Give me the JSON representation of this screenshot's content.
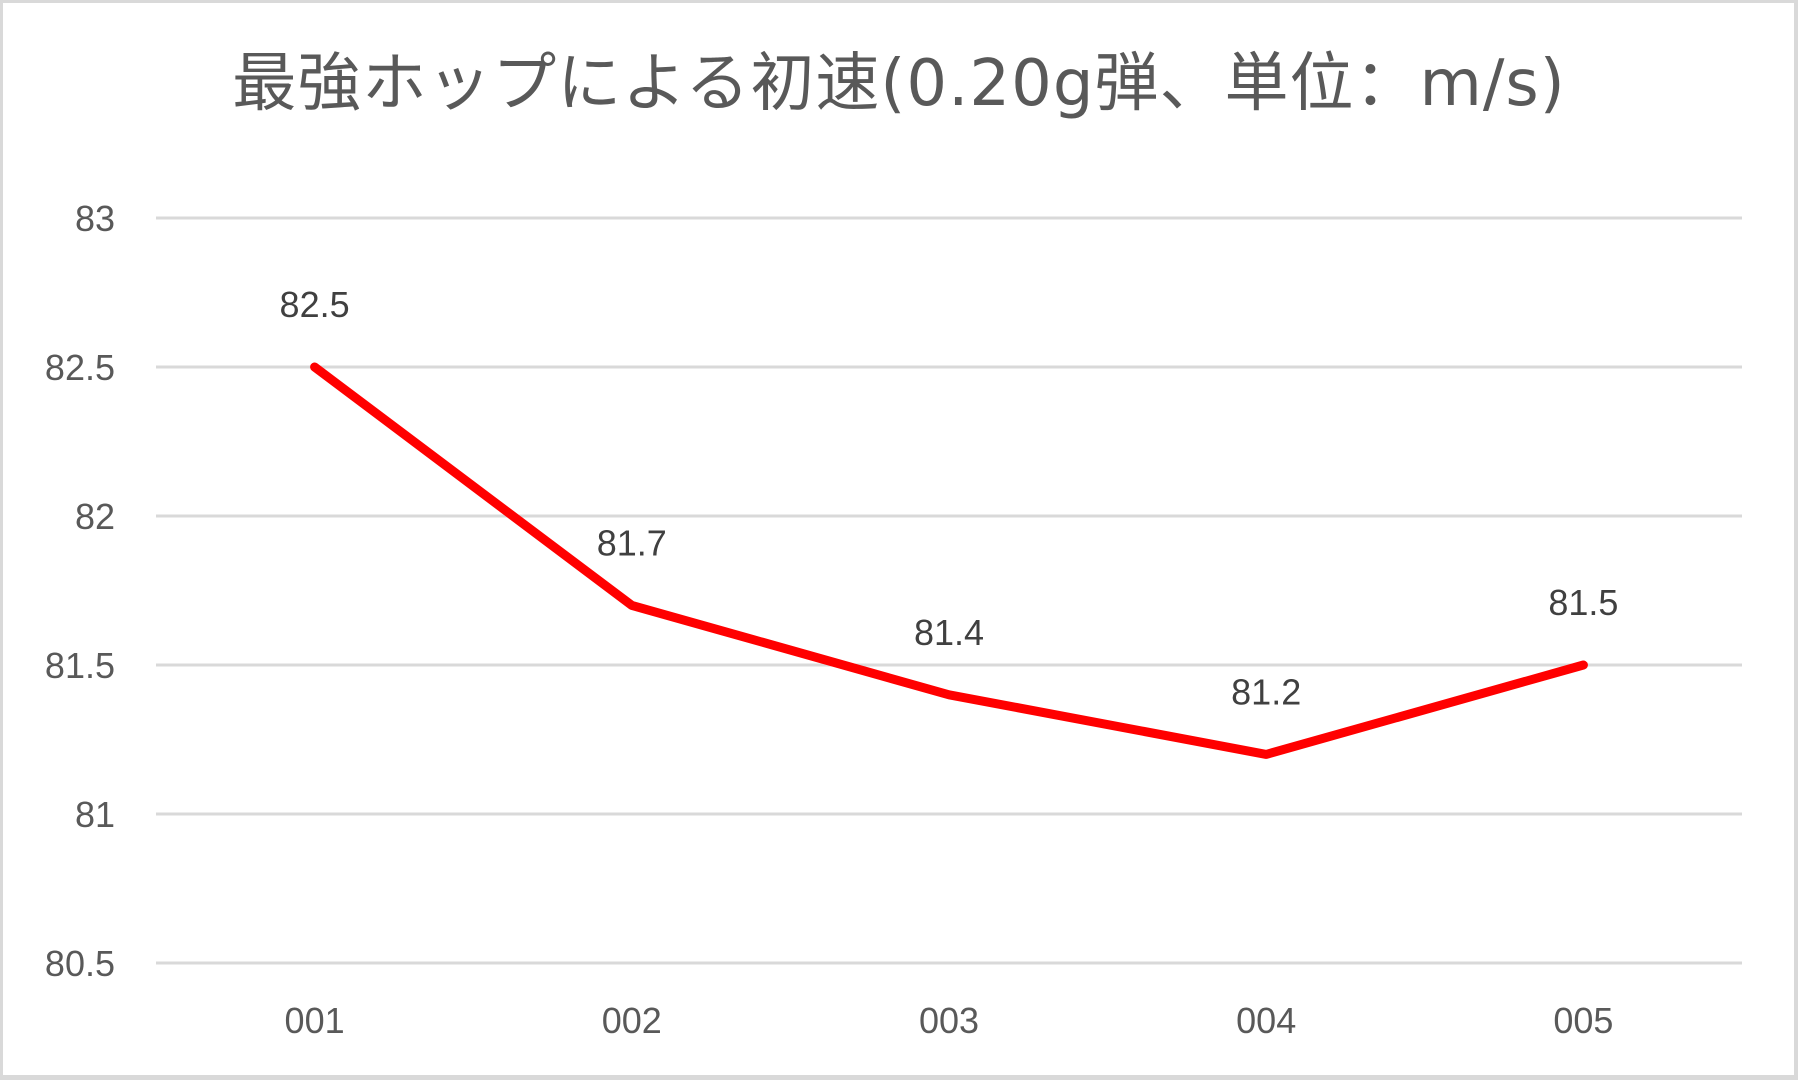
{
  "chart": {
    "title": "最強ホップによる初速(0.20g弾、単位：m/s)",
    "line_color": "#FF0000",
    "grid_color": "#D9D9D9",
    "text_color": "#595959",
    "label_color": "#404040"
  },
  "chart_data": {
    "type": "line",
    "title": "最強ホップによる初速(0.20g弾、単位：m/s)",
    "categories": [
      "001",
      "002",
      "003",
      "004",
      "005"
    ],
    "series": [
      {
        "name": "初速",
        "values": [
          82.5,
          81.7,
          81.4,
          81.2,
          81.5
        ],
        "color": "#FF0000"
      }
    ],
    "data_labels": [
      "82.5",
      "81.7",
      "81.4",
      "81.2",
      "81.5"
    ],
    "xlabel": "",
    "ylabel": "",
    "ylim": [
      80.5,
      83
    ],
    "yticks": [
      "83",
      "82.5",
      "82",
      "81.5",
      "81",
      "80.5"
    ],
    "ytick_values": [
      83,
      82.5,
      82,
      81.5,
      81,
      80.5
    ],
    "grid": true,
    "legend": "none"
  }
}
